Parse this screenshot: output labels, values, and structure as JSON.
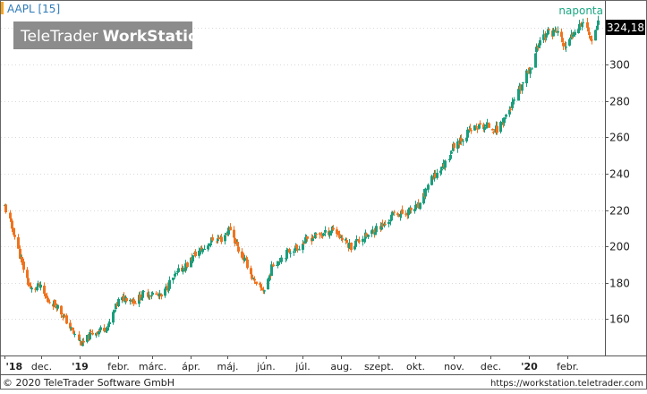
{
  "header": {
    "symbol_label": "AAPL [15]",
    "watermark_brand": "TeleTrader",
    "watermark_product": "WorkStation",
    "period_label": "naponta",
    "last_price": "324,18"
  },
  "footer": {
    "copyright": "© 2020 TeleTrader Software GmbH",
    "url": "https://workstation.teletrader.com"
  },
  "colors": {
    "up": "#1a9e7d",
    "down": "#f0731e",
    "accent": "#f5a623",
    "period_text": "#1aa882",
    "price_box_bg": "#000000",
    "grid": "#d9d9d9",
    "watermark_bg": "#8c8c8c"
  },
  "chart_data": {
    "type": "candlestick",
    "title": "AAPL [15]",
    "y_axis_position": "right",
    "ylim": [
      140,
      335
    ],
    "y_ticks": [
      160,
      180,
      200,
      220,
      240,
      260,
      280,
      300,
      320
    ],
    "y_tick_labels": [
      "160",
      "180",
      "200",
      "220",
      "240",
      "260",
      "280",
      "300",
      "320"
    ],
    "x_labels": [
      "'18",
      "dec.",
      "'19",
      "febr.",
      "márc.",
      "ápr.",
      "máj.",
      "jún.",
      "júl.",
      "aug.",
      "szept.",
      "okt.",
      "nov.",
      "dec.",
      "'20",
      "febr."
    ],
    "x_label_dates": [
      "2018-11-01",
      "2018-12-01",
      "2019-01-01",
      "2019-02-01",
      "2019-03-01",
      "2019-04-01",
      "2019-05-01",
      "2019-06-01",
      "2019-07-01",
      "2019-08-01",
      "2019-09-01",
      "2019-10-01",
      "2019-11-01",
      "2019-12-01",
      "2020-01-01",
      "2020-02-01"
    ],
    "x_range": [
      "2018-11-01",
      "2020-02-26"
    ],
    "grid": true,
    "last_value": 324.18,
    "close_series": {
      "dates": [
        "2018-11-01",
        "2018-11-08",
        "2018-11-15",
        "2018-11-22",
        "2018-11-29",
        "2018-12-06",
        "2018-12-13",
        "2018-12-20",
        "2018-12-27",
        "2019-01-03",
        "2019-01-10",
        "2019-01-17",
        "2019-01-24",
        "2019-02-01",
        "2019-02-08",
        "2019-02-15",
        "2019-02-22",
        "2019-03-01",
        "2019-03-08",
        "2019-03-15",
        "2019-03-22",
        "2019-03-29",
        "2019-04-05",
        "2019-04-12",
        "2019-04-19",
        "2019-04-26",
        "2019-05-03",
        "2019-05-10",
        "2019-05-17",
        "2019-05-24",
        "2019-05-31",
        "2019-06-07",
        "2019-06-14",
        "2019-06-21",
        "2019-06-28",
        "2019-07-05",
        "2019-07-12",
        "2019-07-19",
        "2019-07-26",
        "2019-08-02",
        "2019-08-09",
        "2019-08-16",
        "2019-08-23",
        "2019-08-30",
        "2019-09-06",
        "2019-09-13",
        "2019-09-20",
        "2019-09-27",
        "2019-10-04",
        "2019-10-11",
        "2019-10-18",
        "2019-10-25",
        "2019-11-01",
        "2019-11-08",
        "2019-11-15",
        "2019-11-22",
        "2019-11-29",
        "2019-12-06",
        "2019-12-13",
        "2019-12-20",
        "2019-12-27",
        "2020-01-03",
        "2020-01-10",
        "2020-01-17",
        "2020-01-24",
        "2020-01-31",
        "2020-02-07",
        "2020-02-14",
        "2020-02-21",
        "2020-02-26"
      ],
      "values": [
        222,
        208,
        190,
        176,
        178,
        170,
        168,
        160,
        152,
        146,
        152,
        154,
        156,
        170,
        172,
        170,
        174,
        174,
        172,
        180,
        186,
        190,
        196,
        199,
        204,
        204,
        210,
        198,
        190,
        178,
        176,
        190,
        194,
        198,
        200,
        204,
        206,
        207,
        210,
        204,
        200,
        204,
        206,
        210,
        212,
        218,
        218,
        220,
        222,
        234,
        240,
        246,
        256,
        260,
        264,
        266,
        266,
        264,
        272,
        280,
        290,
        300,
        314,
        318,
        318,
        308,
        320,
        324,
        314,
        324.18
      ]
    }
  }
}
